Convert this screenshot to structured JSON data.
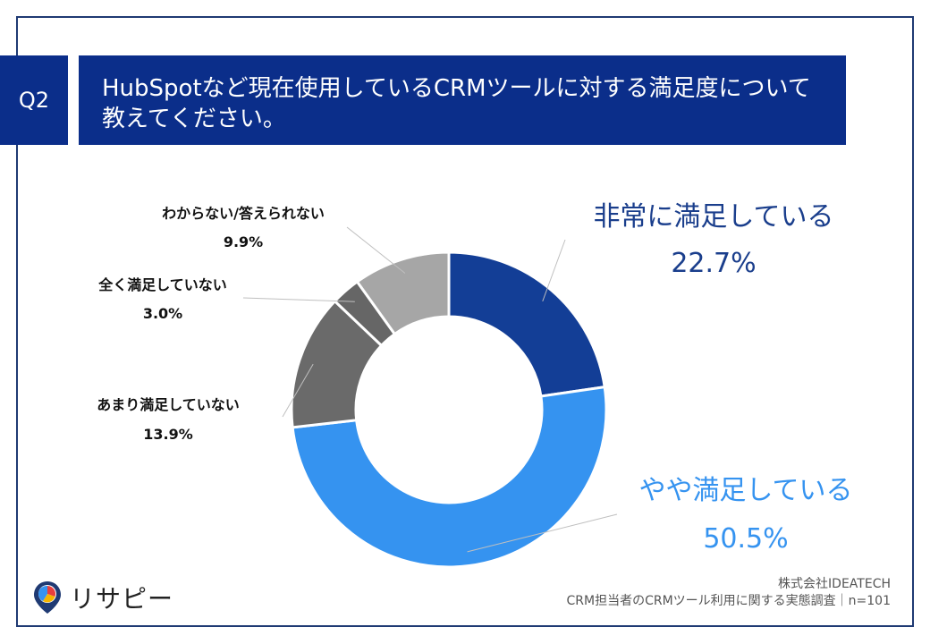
{
  "question": {
    "badge": "Q2",
    "title_line1": "HubSpotなど現在使用しているCRMツールに対する満足度について",
    "title_line2": "教えてください。"
  },
  "chart_data": {
    "type": "pie",
    "variant": "donut",
    "start": "12 o'clock, clockwise",
    "categories": [
      "非常に満足している",
      "やや満足している",
      "あまり満足していない",
      "全く満足していない",
      "わからない/答えられない"
    ],
    "values": [
      22.7,
      50.5,
      13.9,
      3.0,
      9.9
    ],
    "value_labels": [
      "22.7%",
      "50.5%",
      "13.9%",
      "3.0%",
      "9.9%"
    ],
    "colors": [
      "#133e96",
      "#3593f0",
      "#6a6a6a",
      "#666666",
      "#a6a6a6"
    ],
    "label_colors": [
      "#1a3e8c",
      "#3593f0",
      "#111111",
      "#111111",
      "#111111"
    ],
    "unit": "%"
  },
  "brand": {
    "name": "リサピー",
    "logo_icon": "map-pin-pie-icon"
  },
  "source": {
    "company": "株式会社IDEATECH",
    "survey": "CRM担当者のCRMツール利用に関する実態調査｜n=101"
  }
}
